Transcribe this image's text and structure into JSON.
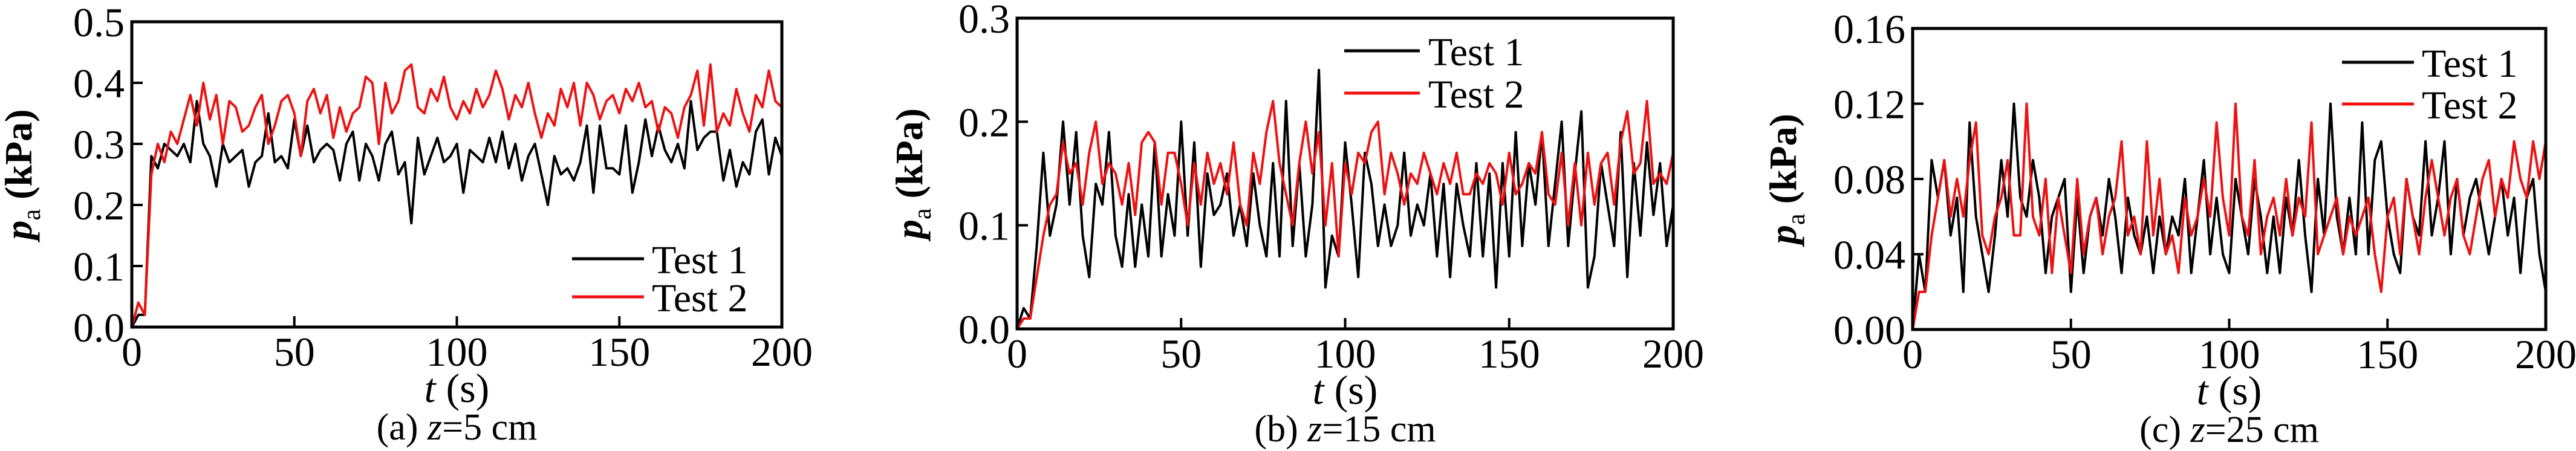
{
  "chart_data": [
    {
      "type": "line",
      "caption_prefix": "(a) ",
      "caption_var": "z",
      "caption_rest": "=5 cm",
      "xlabel_var": "t",
      "xlabel_unit": " (s)",
      "ylabel_var": "p",
      "ylabel_sub": "a",
      "ylabel_unit": " (kPa)",
      "xlim": [
        0,
        200
      ],
      "ylim": [
        0,
        0.5
      ],
      "xticks": [
        "0",
        "50",
        "100",
        "150",
        "200"
      ],
      "yticks": [
        "0.0",
        "0.1",
        "0.2",
        "0.3",
        "0.4",
        "0.5"
      ],
      "legend_position": "bottom-right",
      "series": [
        {
          "name": "Test 1",
          "color": "#000000",
          "values": [
            0,
            0.02,
            0.02,
            0.28,
            0.26,
            0.3,
            0.29,
            0.28,
            0.3,
            0.27,
            0.37,
            0.3,
            0.28,
            0.23,
            0.3,
            0.27,
            0.28,
            0.29,
            0.23,
            0.27,
            0.28,
            0.35,
            0.27,
            0.28,
            0.26,
            0.34,
            0.28,
            0.33,
            0.27,
            0.29,
            0.3,
            0.29,
            0.24,
            0.3,
            0.32,
            0.24,
            0.3,
            0.28,
            0.24,
            0.3,
            0.32,
            0.25,
            0.27,
            0.17,
            0.31,
            0.25,
            0.28,
            0.31,
            0.27,
            0.28,
            0.3,
            0.22,
            0.29,
            0.28,
            0.27,
            0.31,
            0.27,
            0.32,
            0.26,
            0.3,
            0.24,
            0.28,
            0.3,
            0.25,
            0.2,
            0.28,
            0.25,
            0.26,
            0.24,
            0.27,
            0.33,
            0.22,
            0.33,
            0.26,
            0.26,
            0.25,
            0.33,
            0.22,
            0.27,
            0.34,
            0.28,
            0.33,
            0.29,
            0.27,
            0.3,
            0.26,
            0.37,
            0.29,
            0.31,
            0.32,
            0.32,
            0.24,
            0.29,
            0.23,
            0.27,
            0.25,
            0.32,
            0.34,
            0.25,
            0.31,
            0.28
          ]
        },
        {
          "name": "Test 2",
          "color": "#ee1111",
          "values": [
            0,
            0.04,
            0.02,
            0.25,
            0.3,
            0.27,
            0.32,
            0.3,
            0.34,
            0.38,
            0.33,
            0.4,
            0.34,
            0.38,
            0.3,
            0.37,
            0.36,
            0.32,
            0.33,
            0.36,
            0.38,
            0.3,
            0.33,
            0.37,
            0.38,
            0.35,
            0.28,
            0.37,
            0.39,
            0.35,
            0.38,
            0.31,
            0.36,
            0.32,
            0.35,
            0.36,
            0.41,
            0.4,
            0.3,
            0.4,
            0.35,
            0.37,
            0.42,
            0.43,
            0.36,
            0.35,
            0.39,
            0.37,
            0.41,
            0.36,
            0.34,
            0.37,
            0.35,
            0.39,
            0.36,
            0.38,
            0.42,
            0.39,
            0.34,
            0.38,
            0.36,
            0.4,
            0.35,
            0.31,
            0.35,
            0.33,
            0.39,
            0.36,
            0.4,
            0.33,
            0.4,
            0.38,
            0.34,
            0.37,
            0.38,
            0.35,
            0.39,
            0.37,
            0.4,
            0.36,
            0.37,
            0.32,
            0.36,
            0.35,
            0.31,
            0.36,
            0.38,
            0.42,
            0.33,
            0.43,
            0.32,
            0.35,
            0.33,
            0.39,
            0.35,
            0.32,
            0.38,
            0.36,
            0.42,
            0.37,
            0.36
          ]
        }
      ]
    },
    {
      "type": "line",
      "caption_prefix": "(b) ",
      "caption_var": "z",
      "caption_rest": "=15 cm",
      "xlabel_var": "t",
      "xlabel_unit": " (s)",
      "ylabel_var": "p",
      "ylabel_sub": "a",
      "ylabel_unit": " (kPa)",
      "xlim": [
        0,
        200
      ],
      "ylim": [
        0,
        0.3
      ],
      "xticks": [
        "0",
        "50",
        "100",
        "150",
        "200"
      ],
      "yticks": [
        "0.0",
        "0.1",
        "0.2",
        "0.3"
      ],
      "legend_position": "top-right",
      "series": [
        {
          "name": "Test 1",
          "color": "#000000",
          "values": [
            0,
            0.02,
            0.01,
            0.08,
            0.17,
            0.09,
            0.12,
            0.2,
            0.12,
            0.19,
            0.09,
            0.05,
            0.14,
            0.12,
            0.19,
            0.09,
            0.06,
            0.13,
            0.06,
            0.12,
            0.07,
            0.18,
            0.07,
            0.13,
            0.09,
            0.2,
            0.09,
            0.18,
            0.06,
            0.15,
            0.11,
            0.12,
            0.15,
            0.09,
            0.12,
            0.08,
            0.15,
            0.1,
            0.07,
            0.16,
            0.07,
            0.22,
            0.08,
            0.16,
            0.07,
            0.12,
            0.25,
            0.04,
            0.09,
            0.07,
            0.18,
            0.12,
            0.05,
            0.17,
            0.14,
            0.08,
            0.12,
            0.08,
            0.1,
            0.17,
            0.09,
            0.12,
            0.1,
            0.15,
            0.07,
            0.14,
            0.05,
            0.14,
            0.1,
            0.07,
            0.16,
            0.07,
            0.15,
            0.04,
            0.16,
            0.07,
            0.19,
            0.08,
            0.16,
            0.12,
            0.19,
            0.08,
            0.14,
            0.2,
            0.08,
            0.15,
            0.21,
            0.04,
            0.07,
            0.16,
            0.12,
            0.08,
            0.19,
            0.05,
            0.16,
            0.09,
            0.18,
            0.11,
            0.16,
            0.08,
            0.12
          ]
        },
        {
          "name": "Test 2",
          "color": "#ee1111",
          "values": [
            0,
            0.01,
            0.01,
            0.05,
            0.09,
            0.12,
            0.13,
            0.18,
            0.15,
            0.16,
            0.12,
            0.17,
            0.2,
            0.14,
            0.16,
            0.15,
            0.12,
            0.16,
            0.11,
            0.18,
            0.19,
            0.18,
            0.12,
            0.17,
            0.17,
            0.14,
            0.1,
            0.16,
            0.12,
            0.17,
            0.14,
            0.16,
            0.13,
            0.18,
            0.12,
            0.1,
            0.17,
            0.14,
            0.19,
            0.22,
            0.16,
            0.13,
            0.1,
            0.16,
            0.2,
            0.15,
            0.19,
            0.1,
            0.16,
            0.07,
            0.16,
            0.13,
            0.17,
            0.16,
            0.19,
            0.2,
            0.13,
            0.17,
            0.15,
            0.12,
            0.15,
            0.14,
            0.17,
            0.15,
            0.13,
            0.16,
            0.14,
            0.17,
            0.13,
            0.13,
            0.15,
            0.14,
            0.16,
            0.15,
            0.12,
            0.17,
            0.13,
            0.14,
            0.16,
            0.15,
            0.19,
            0.13,
            0.12,
            0.17,
            0.1,
            0.16,
            0.1,
            0.17,
            0.12,
            0.16,
            0.17,
            0.12,
            0.18,
            0.21,
            0.15,
            0.16,
            0.22,
            0.14,
            0.15,
            0.14,
            0.17
          ]
        }
      ]
    },
    {
      "type": "line",
      "caption_prefix": "(c) ",
      "caption_var": "z",
      "caption_rest": "=25 cm",
      "xlabel_var": "t",
      "xlabel_unit": " (s)",
      "ylabel_var": "p",
      "ylabel_sub": "a",
      "ylabel_unit": " (kPa)",
      "xlim": [
        0,
        200
      ],
      "ylim": [
        0,
        0.16
      ],
      "xticks": [
        "0",
        "50",
        "100",
        "150",
        "200"
      ],
      "yticks": [
        "0.00",
        "0.04",
        "0.08",
        "0.12",
        "0.16"
      ],
      "legend_position": "top-right",
      "series": [
        {
          "name": "Test 1",
          "color": "#000000",
          "values": [
            0,
            0.04,
            0.02,
            0.09,
            0.07,
            0.09,
            0.05,
            0.07,
            0.02,
            0.11,
            0.06,
            0.04,
            0.02,
            0.05,
            0.09,
            0.06,
            0.12,
            0.07,
            0.06,
            0.09,
            0.07,
            0.03,
            0.06,
            0.07,
            0.08,
            0.02,
            0.07,
            0.03,
            0.06,
            0.07,
            0.05,
            0.08,
            0.06,
            0.03,
            0.07,
            0.05,
            0.04,
            0.06,
            0.03,
            0.06,
            0.04,
            0.06,
            0.05,
            0.08,
            0.03,
            0.06,
            0.09,
            0.04,
            0.07,
            0.04,
            0.03,
            0.08,
            0.06,
            0.04,
            0.08,
            0.06,
            0.03,
            0.06,
            0.03,
            0.07,
            0.05,
            0.09,
            0.05,
            0.02,
            0.08,
            0.05,
            0.12,
            0.06,
            0.04,
            0.07,
            0.04,
            0.11,
            0.04,
            0.09,
            0.1,
            0.06,
            0.04,
            0.03,
            0.08,
            0.06,
            0.05,
            0.1,
            0.05,
            0.07,
            0.1,
            0.04,
            0.08,
            0.05,
            0.07,
            0.08,
            0.06,
            0.04,
            0.06,
            0.08,
            0.05,
            0.07,
            0.03,
            0.07,
            0.08,
            0.04,
            0.02
          ]
        },
        {
          "name": "Test 2",
          "color": "#ee1111",
          "values": [
            0,
            0.02,
            0.02,
            0.05,
            0.07,
            0.09,
            0.06,
            0.08,
            0.06,
            0.09,
            0.11,
            0.05,
            0.04,
            0.06,
            0.07,
            0.09,
            0.05,
            0.05,
            0.12,
            0.06,
            0.05,
            0.08,
            0.03,
            0.07,
            0.05,
            0.03,
            0.08,
            0.04,
            0.06,
            0.07,
            0.04,
            0.06,
            0.07,
            0.1,
            0.05,
            0.06,
            0.04,
            0.1,
            0.05,
            0.08,
            0.04,
            0.05,
            0.03,
            0.07,
            0.05,
            0.06,
            0.08,
            0.06,
            0.11,
            0.07,
            0.05,
            0.12,
            0.06,
            0.05,
            0.09,
            0.04,
            0.06,
            0.07,
            0.05,
            0.08,
            0.05,
            0.07,
            0.06,
            0.11,
            0.04,
            0.05,
            0.06,
            0.07,
            0.04,
            0.06,
            0.05,
            0.06,
            0.07,
            0.04,
            0.02,
            0.06,
            0.07,
            0.04,
            0.08,
            0.06,
            0.04,
            0.07,
            0.09,
            0.07,
            0.05,
            0.07,
            0.08,
            0.05,
            0.04,
            0.06,
            0.08,
            0.09,
            0.06,
            0.08,
            0.07,
            0.1,
            0.08,
            0.07,
            0.1,
            0.08,
            0.1
          ]
        }
      ]
    }
  ]
}
